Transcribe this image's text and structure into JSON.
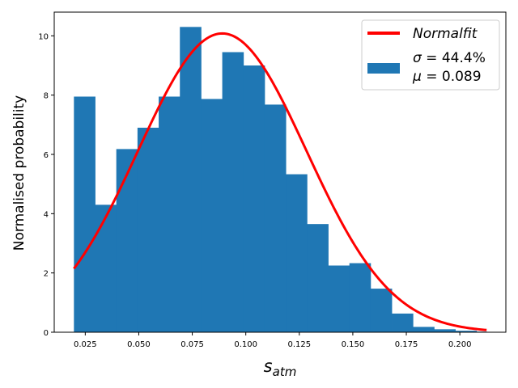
{
  "chart_data": {
    "type": "bar",
    "subtype": "histogram-with-normal-fit",
    "bins": {
      "edges": [
        0.0197,
        0.0296,
        0.0395,
        0.0494,
        0.0593,
        0.0692,
        0.0791,
        0.089,
        0.0989,
        0.1088,
        0.1187,
        0.1286,
        0.1385,
        0.1484,
        0.1583,
        0.1682,
        0.1781,
        0.188,
        0.1979,
        0.2078,
        0.2125
      ],
      "values": [
        7.95,
        4.3,
        6.18,
        6.9,
        7.95,
        10.3,
        7.87,
        9.45,
        9.0,
        7.68,
        5.33,
        3.65,
        2.25,
        2.33,
        1.47,
        0.63,
        0.18,
        0.1,
        0.05,
        0.02
      ]
    },
    "fit": {
      "mu": 0.089,
      "amplitude": 10.08,
      "sigma_abs": 0.0394
    },
    "xlabel_base": "s",
    "xlabel_sub": "atm",
    "ylabel": "Normalised probability",
    "xlim": [
      0.0105,
      0.2215
    ],
    "ylim": [
      0,
      10.8
    ],
    "xticks": [
      0.025,
      0.05,
      0.075,
      0.1,
      0.125,
      0.15,
      0.175,
      0.2
    ],
    "xtick_labels": [
      "0.025",
      "0.050",
      "0.075",
      "0.100",
      "0.125",
      "0.150",
      "0.175",
      "0.200"
    ],
    "yticks": [
      0,
      2,
      4,
      6,
      8,
      10
    ],
    "ytick_labels": [
      "0",
      "2",
      "4",
      "6",
      "8",
      "10"
    ],
    "legend": {
      "placement": "top-right",
      "fit_label": "Normalfit",
      "sigma_symbol": "σ",
      "sigma_value": "44.4%",
      "mu_symbol": "μ",
      "mu_value": "0.089"
    },
    "colors": {
      "bars": "#1f77b4",
      "fit": "#ff0000"
    },
    "grid": false
  }
}
